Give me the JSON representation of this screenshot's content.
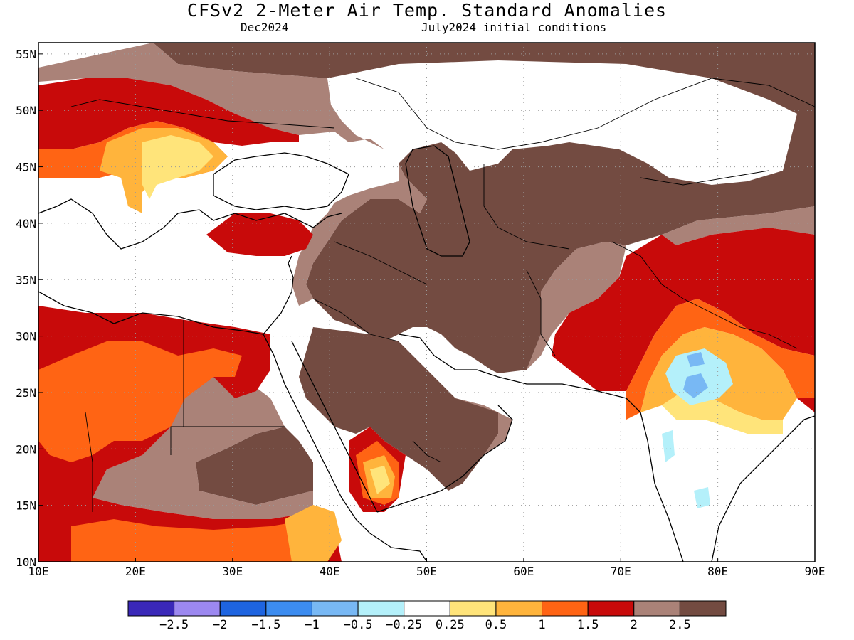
{
  "header": {
    "title": "CFSv2 2-Meter Air Temp. Standard Anomalies",
    "target_month": "Dec2024",
    "initial_conditions": "July2024 initial conditions"
  },
  "map": {
    "lon_range": [
      10,
      90
    ],
    "lat_range": [
      10,
      56
    ],
    "lon_ticks": [
      {
        "value": 10,
        "label": "10E"
      },
      {
        "value": 20,
        "label": "20E"
      },
      {
        "value": 30,
        "label": "30E"
      },
      {
        "value": 40,
        "label": "40E"
      },
      {
        "value": 50,
        "label": "50E"
      },
      {
        "value": 60,
        "label": "60E"
      },
      {
        "value": 70,
        "label": "70E"
      },
      {
        "value": 80,
        "label": "80E"
      },
      {
        "value": 90,
        "label": "90E"
      }
    ],
    "lat_ticks": [
      {
        "value": 10,
        "label": "10N"
      },
      {
        "value": 15,
        "label": "15N"
      },
      {
        "value": 20,
        "label": "20N"
      },
      {
        "value": 25,
        "label": "25N"
      },
      {
        "value": 30,
        "label": "30N"
      },
      {
        "value": 35,
        "label": "35N"
      },
      {
        "value": 40,
        "label": "40N"
      },
      {
        "value": 45,
        "label": "45N"
      },
      {
        "value": 50,
        "label": "50N"
      },
      {
        "value": 55,
        "label": "55N"
      }
    ],
    "grid": "dotted",
    "background_color": "#ffffff",
    "land_outline_color": "#000000"
  },
  "legend": {
    "bins": [
      {
        "color": "#3a28b8"
      },
      {
        "color": "#9c88f0"
      },
      {
        "color": "#1e64e0"
      },
      {
        "color": "#3c8cf0"
      },
      {
        "color": "#78b8f4"
      },
      {
        "color": "#b4f0fa"
      },
      {
        "color": "#ffffff"
      },
      {
        "color": "#ffe47a"
      },
      {
        "color": "#ffb43c"
      },
      {
        "color": "#ff6414"
      },
      {
        "color": "#c80a0a"
      },
      {
        "color": "#aa8278"
      },
      {
        "color": "#734b41"
      }
    ],
    "labels": [
      "-2.5",
      "-2",
      "-1.5",
      "-1",
      "-0.5",
      "-0.25",
      "0.25",
      "0.5",
      "1",
      "1.5",
      "2",
      "2.5"
    ]
  }
}
